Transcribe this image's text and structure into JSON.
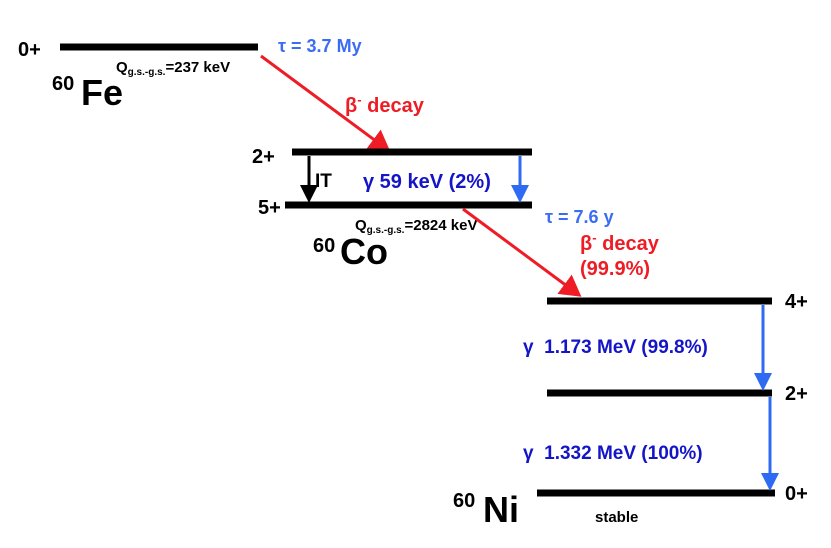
{
  "fe": {
    "level": "0+",
    "mass": "60",
    "symbol": "Fe",
    "q_main": "Q",
    "q_sub": "g.s.-g.s.",
    "q_value": "=237 keV",
    "lifetime": "τ = 3.7 My",
    "decay_beta": "β",
    "decay_sup": "-",
    "decay_text": " decay"
  },
  "co": {
    "levels": [
      "2+",
      "5+"
    ],
    "it": "IT",
    "gamma": "γ 59 keV (2%)",
    "mass": "60",
    "symbol": "Co",
    "q_main": "Q",
    "q_sub": "g.s.-g.s.",
    "q_value": "=2824 keV",
    "lifetime": "τ = 7.6 y",
    "decay_beta": "β",
    "decay_sup": "-",
    "decay_text": " decay",
    "branch": "(99.9%)"
  },
  "ni": {
    "levels": [
      "4+",
      "2+",
      "0+"
    ],
    "gammas": [
      "γ  1.173 MeV (99.8%)",
      "γ  1.332 MeV (100%)"
    ],
    "mass": "60",
    "symbol": "Ni",
    "status": "stable"
  }
}
